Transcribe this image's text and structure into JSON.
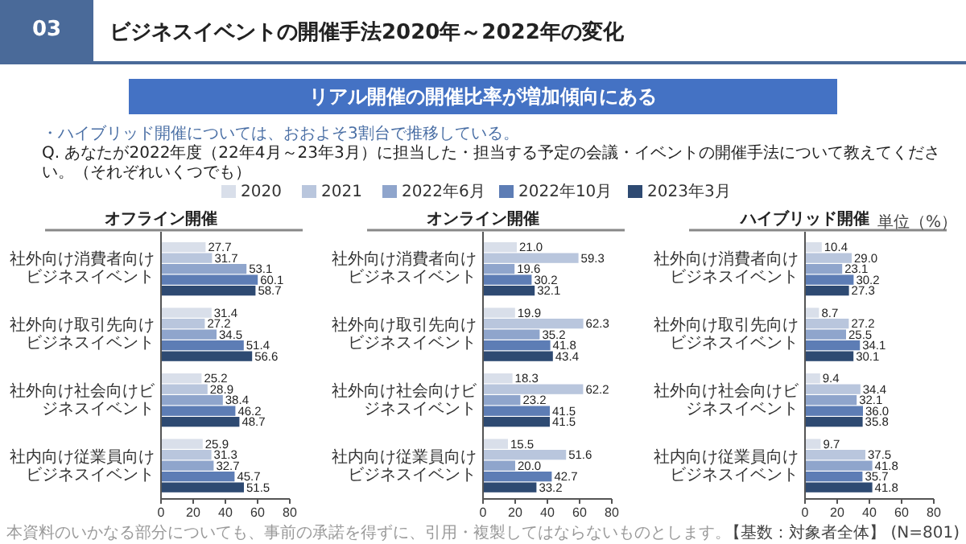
{
  "chart_data": [
    {
      "type": "bar",
      "orientation": "horizontal",
      "title": "オフライン開催",
      "categories": [
        "社外向け消費者向けビジネスイベント",
        "社外向け取引先向けビジネスイベント",
        "社外向け社会向けビジネスイベント",
        "社内向け従業員向けビジネスイベント"
      ],
      "series": [
        {
          "color": "#d9dfea",
          "values": [
            27.7,
            31.4,
            25.2,
            25.9
          ],
          "value_labels": [
            "27.7",
            "31.4",
            "25.2",
            "25.9"
          ]
        },
        {
          "color": "#b9c6dd",
          "values": [
            31.7,
            27.2,
            28.9,
            31.3
          ],
          "value_labels": [
            "31.7",
            "27.2",
            "28.9",
            "31.3"
          ]
        },
        {
          "color": "#8fa5cc",
          "values": [
            53.1,
            34.5,
            38.4,
            32.7
          ],
          "value_labels": [
            "53.1",
            "34.5",
            "38.4",
            "32.7"
          ]
        },
        {
          "color": "#5d7db5",
          "values": [
            60.1,
            51.4,
            46.2,
            45.7
          ],
          "value_labels": [
            "60.1",
            "51.4",
            "46.2",
            "45.7"
          ]
        },
        {
          "color": "#2e4a72",
          "values": [
            58.7,
            56.6,
            48.7,
            51.5
          ],
          "value_labels": [
            "58.7",
            "56.6",
            "48.7",
            "51.5"
          ]
        }
      ],
      "xlim": [
        0,
        80
      ],
      "xticks": [
        0,
        20,
        40,
        60,
        80
      ],
      "annotations": [
        "03",
        "ビジネスイベントの開催手法2020年～2022年の変化",
        "リアル開催の開催比率が増加傾向にある",
        "・ハイブリッド開催については、おおよそ3割台で推移している。",
        "Q. あなたが2022年度（22年4月～23年3月）に担当した・担当する予定の会議・イベントの開催手法について教えてください。（それぞれいくつでも）",
        "本資料のいかなる部分についても、事前の承諾を得ずに、引用・複製してはならないものとします。"
      ]
    },
    {
      "type": "bar",
      "orientation": "horizontal",
      "title": "オンライン開催",
      "categories": [
        "社外向け消費者向けビジネスイベント",
        "社外向け取引先向けビジネスイベント",
        "社外向け社会向けビジネスイベント",
        "社内向け従業員向けビジネスイベント"
      ],
      "series": [
        {
          "name": "2020",
          "color": "#d9dfea",
          "values": [
            21.0,
            19.9,
            18.3,
            15.5
          ],
          "value_labels": [
            "21.0",
            "19.9",
            "18.3",
            "15.5"
          ]
        },
        {
          "name": "2021",
          "color": "#b9c6dd",
          "values": [
            59.3,
            62.3,
            62.2,
            51.6
          ],
          "value_labels": [
            "59.3",
            "62.3",
            "62.2",
            "51.6"
          ]
        },
        {
          "name": "2022年6月",
          "color": "#8fa5cc",
          "values": [
            19.6,
            35.2,
            23.2,
            20.0
          ],
          "value_labels": [
            "19.6",
            "35.2",
            "23.2",
            "20.0"
          ]
        },
        {
          "name": "2022年10月",
          "color": "#5d7db5",
          "values": [
            30.2,
            41.8,
            41.5,
            42.7
          ],
          "value_labels": [
            "30.2",
            "41.8",
            "41.5",
            "42.7"
          ]
        },
        {
          "name": "2023年3月",
          "color": "#2e4a72",
          "values": [
            32.1,
            43.4,
            41.5,
            33.2
          ],
          "value_labels": [
            "32.1",
            "43.4",
            "41.5",
            "33.2"
          ]
        }
      ],
      "xlim": [
        0,
        80
      ],
      "xticks": [
        0,
        20,
        40,
        60,
        80
      ],
      "legend": "top"
    },
    {
      "type": "bar",
      "orientation": "horizontal",
      "title": "ハイブリッド開催",
      "categories": [
        "社外向け消費者向けビジネスイベント",
        "社外向け取引先向けビジネスイベント",
        "社外向け社会向けビジネスイベント",
        "社内向け従業員向けビジネスイベント"
      ],
      "series": [
        {
          "color": "#d9dfea",
          "values": [
            10.4,
            8.7,
            9.4,
            9.7
          ],
          "value_labels": [
            "10.4",
            "8.7",
            "9.4",
            "9.7"
          ]
        },
        {
          "color": "#b9c6dd",
          "values": [
            29.0,
            27.2,
            34.4,
            37.5
          ],
          "value_labels": [
            "29.0",
            "27.2",
            "34.4",
            "37.5"
          ]
        },
        {
          "color": "#8fa5cc",
          "values": [
            23.1,
            25.5,
            32.1,
            41.8
          ],
          "value_labels": [
            "23.1",
            "25.5",
            "32.1",
            "41.8"
          ]
        },
        {
          "color": "#5d7db5",
          "values": [
            30.2,
            34.1,
            36.0,
            35.7
          ],
          "value_labels": [
            "30.2",
            "34.1",
            "36.0",
            "35.7"
          ]
        },
        {
          "color": "#2e4a72",
          "values": [
            27.3,
            30.1,
            35.8,
            41.8
          ],
          "value_labels": [
            "27.3",
            "30.1",
            "35.8",
            "41.8"
          ]
        }
      ],
      "xlim": [
        0,
        80
      ],
      "xticks": [
        0,
        20,
        40,
        60,
        80
      ],
      "annotations": [
        "単位（%）",
        "【基数：対象者全体】 (N=801)"
      ]
    }
  ]
}
